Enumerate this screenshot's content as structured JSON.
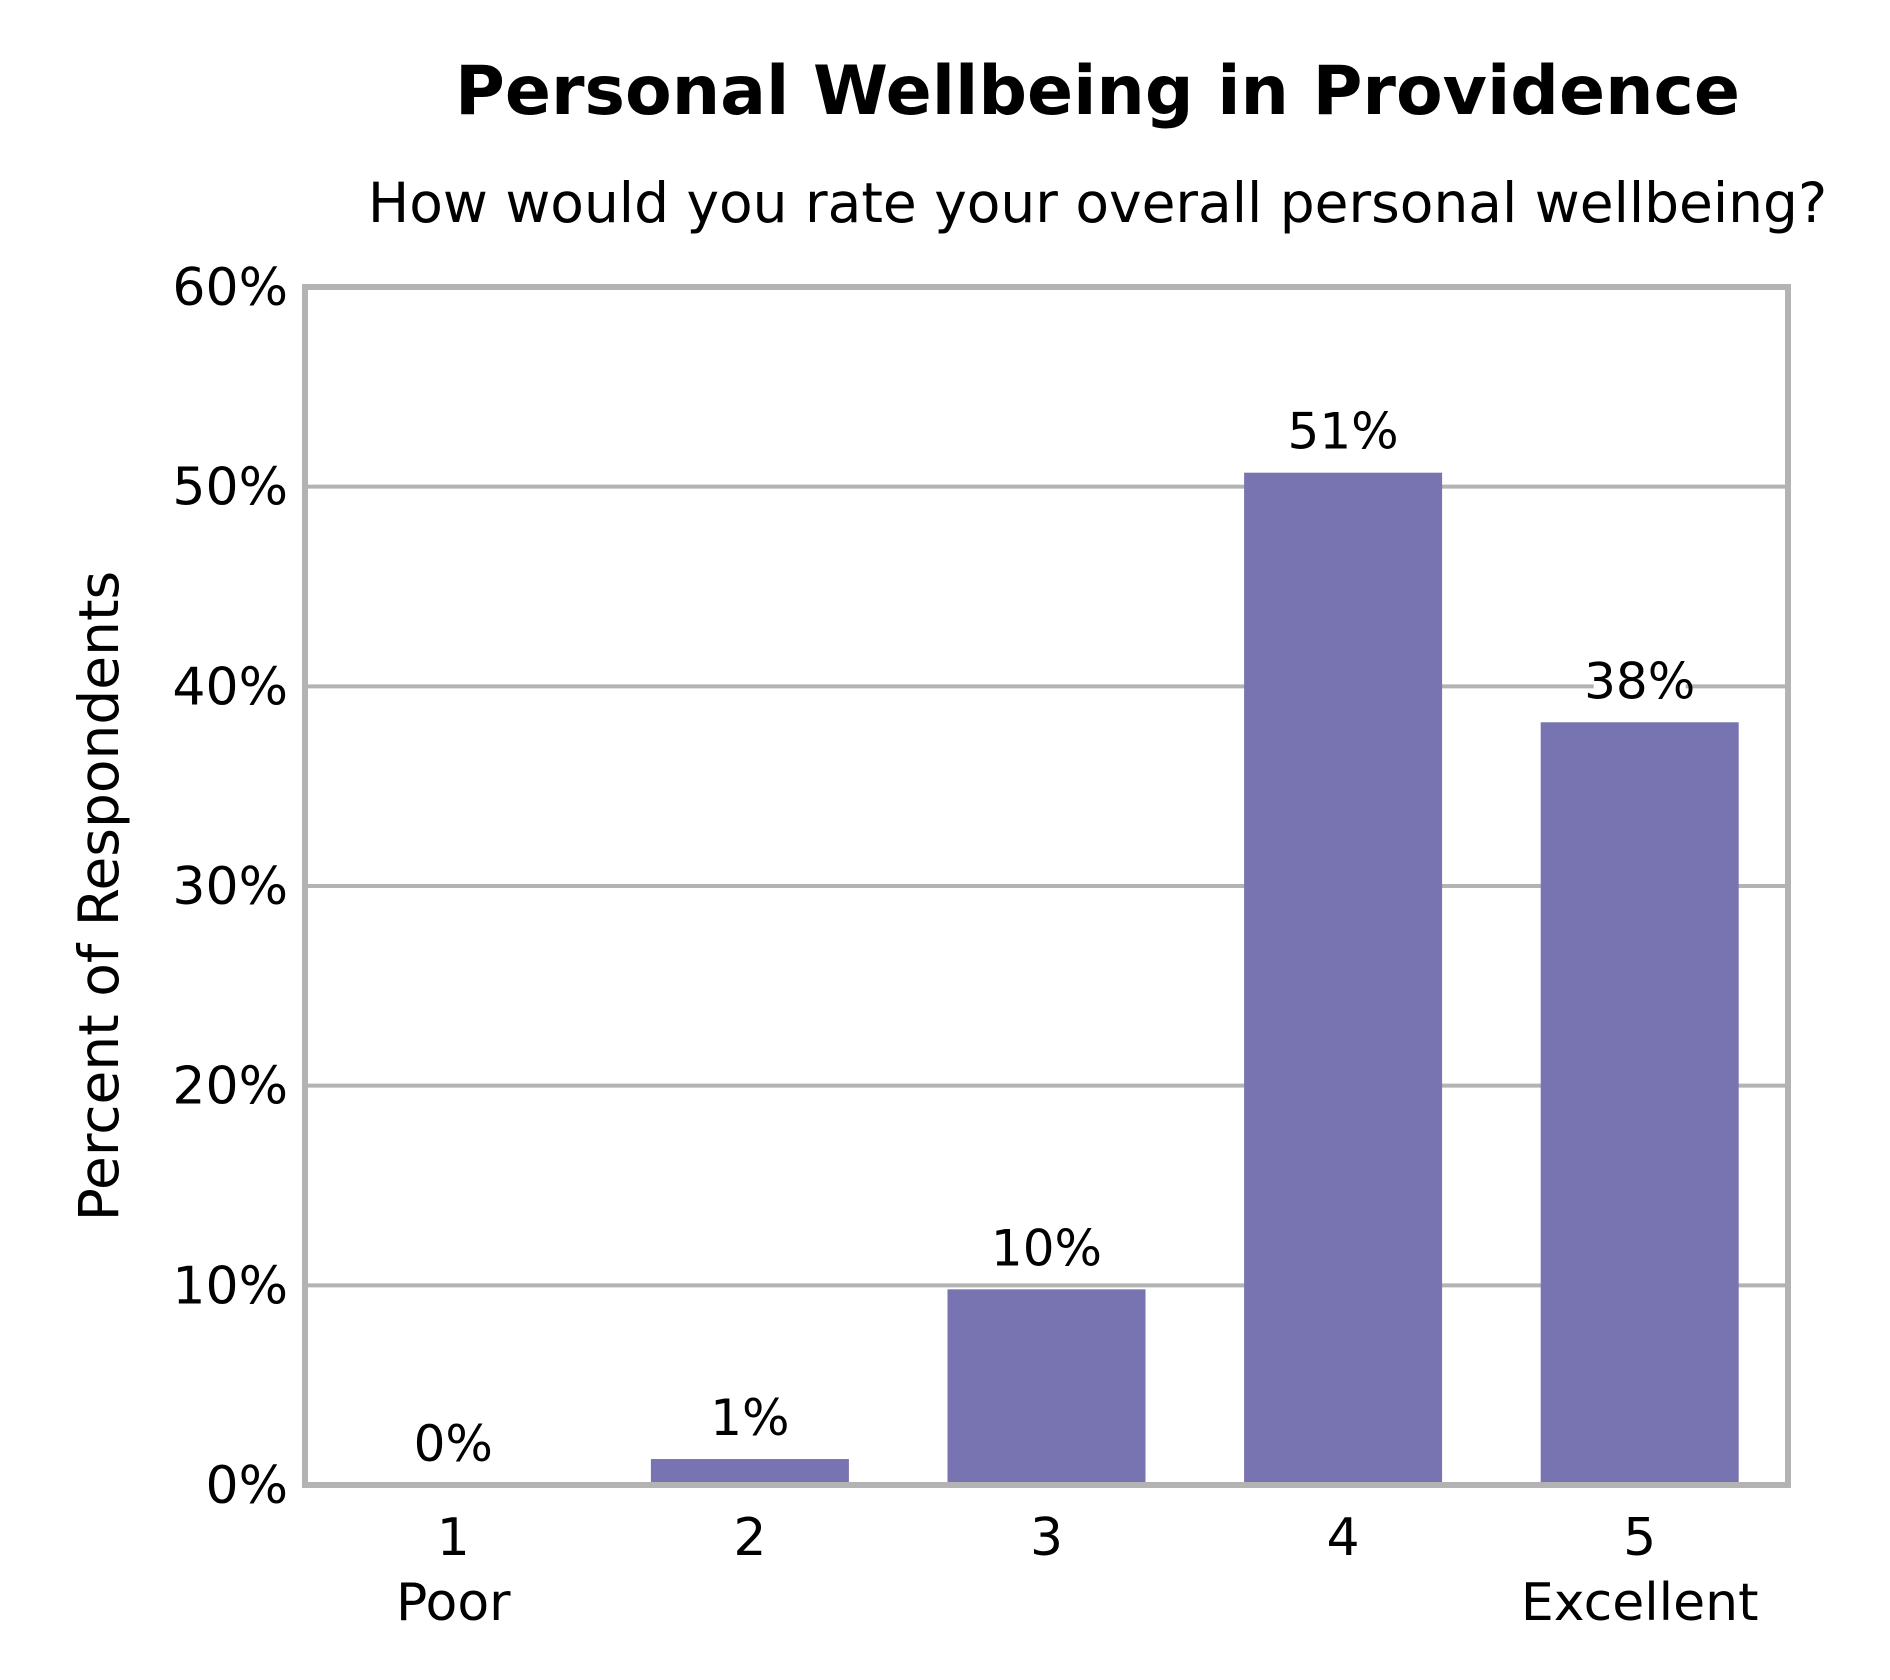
{
  "chart_data": {
    "type": "bar",
    "title": "Personal Wellbeing in Providence",
    "subtitle": "How would you rate your overall personal wellbeing?",
    "ylabel": "Percent of Respondents",
    "xlabel": "",
    "categories": [
      "1",
      "2",
      "3",
      "4",
      "5"
    ],
    "category_sublabels": [
      "Poor",
      "",
      "",
      "",
      "Excellent"
    ],
    "values": [
      0,
      1.3,
      9.8,
      50.7,
      38.2
    ],
    "data_labels": [
      "0%",
      "1%",
      "10%",
      "51%",
      "38%"
    ],
    "ylim": [
      0,
      60
    ],
    "yticks": [
      0,
      10,
      20,
      30,
      40,
      50,
      60
    ],
    "ytick_labels": [
      "0%",
      "10%",
      "20%",
      "30%",
      "40%",
      "50%",
      "60%"
    ],
    "grid": true,
    "legend": "none",
    "colors": {
      "bar": "#7873B1",
      "grid": "#B3B3B3",
      "frame": "#B3B3B3"
    }
  }
}
